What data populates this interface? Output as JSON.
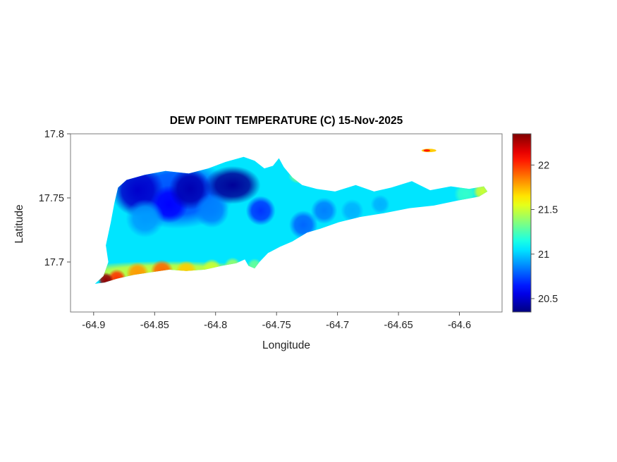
{
  "chart_data": {
    "type": "heatmap",
    "title": "DEW POINT TEMPERATURE (C) 15-Nov-2025",
    "xlabel": "Longitude",
    "ylabel": "Latitude",
    "xlim": [
      -64.919,
      -64.565
    ],
    "ylim": [
      17.661,
      17.8
    ],
    "grid": false,
    "xticks": [
      -64.9,
      -64.85,
      -64.8,
      -64.75,
      -64.7,
      -64.65,
      -64.6
    ],
    "xtick_labels": [
      "-64.9",
      "-64.85",
      "-64.8",
      "-64.75",
      "-64.7",
      "-64.65",
      "-64.6"
    ],
    "yticks": [
      17.7,
      17.75,
      17.8
    ],
    "ytick_labels": [
      "17.7",
      "17.75",
      "17.8"
    ],
    "colorbar": {
      "colormap": "jet",
      "min": 20.35,
      "max": 22.35,
      "ticks": [
        20.5,
        21,
        21.5,
        22
      ],
      "tick_labels": [
        "20.5",
        "21",
        "21.5",
        "22"
      ]
    },
    "base_value": 21.05,
    "island_outline": [
      [
        -64.899,
        17.683
      ],
      [
        -64.892,
        17.689
      ],
      [
        -64.888,
        17.7
      ],
      [
        -64.89,
        17.713
      ],
      [
        -64.886,
        17.731
      ],
      [
        -64.883,
        17.746
      ],
      [
        -64.88,
        17.758
      ],
      [
        -64.873,
        17.764
      ],
      [
        -64.858,
        17.768
      ],
      [
        -64.841,
        17.771
      ],
      [
        -64.822,
        17.769
      ],
      [
        -64.806,
        17.773
      ],
      [
        -64.792,
        17.778
      ],
      [
        -64.777,
        17.782
      ],
      [
        -64.768,
        17.779
      ],
      [
        -64.76,
        17.773
      ],
      [
        -64.753,
        17.775
      ],
      [
        -64.748,
        17.781
      ],
      [
        -64.744,
        17.774
      ],
      [
        -64.737,
        17.766
      ],
      [
        -64.729,
        17.76
      ],
      [
        -64.717,
        17.757
      ],
      [
        -64.702,
        17.755
      ],
      [
        -64.685,
        17.76
      ],
      [
        -64.67,
        17.755
      ],
      [
        -64.656,
        17.758
      ],
      [
        -64.639,
        17.763
      ],
      [
        -64.624,
        17.756
      ],
      [
        -64.607,
        17.759
      ],
      [
        -64.592,
        17.757
      ],
      [
        -64.58,
        17.759
      ],
      [
        -64.577,
        17.755
      ],
      [
        -64.584,
        17.751
      ],
      [
        -64.601,
        17.748
      ],
      [
        -64.621,
        17.744
      ],
      [
        -64.641,
        17.742
      ],
      [
        -64.662,
        17.738
      ],
      [
        -64.682,
        17.735
      ],
      [
        -64.699,
        17.731
      ],
      [
        -64.714,
        17.726
      ],
      [
        -64.725,
        17.723
      ],
      [
        -64.737,
        17.716
      ],
      [
        -64.747,
        17.712
      ],
      [
        -64.757,
        17.707
      ],
      [
        -64.764,
        17.7
      ],
      [
        -64.768,
        17.695
      ],
      [
        -64.773,
        17.697
      ],
      [
        -64.776,
        17.702
      ],
      [
        -64.783,
        17.699
      ],
      [
        -64.795,
        17.697
      ],
      [
        -64.809,
        17.694
      ],
      [
        -64.824,
        17.693
      ],
      [
        -64.838,
        17.694
      ],
      [
        -64.853,
        17.692
      ],
      [
        -64.867,
        17.69
      ],
      [
        -64.881,
        17.687
      ],
      [
        -64.891,
        17.684
      ]
    ],
    "blobs": [
      [
        -64.832,
        17.753,
        20.75,
        0.035,
        0.02
      ],
      [
        -64.864,
        17.756,
        20.5,
        0.016
      ],
      [
        -64.838,
        17.745,
        20.6,
        0.0115
      ],
      [
        -64.821,
        17.757,
        20.45,
        0.0127
      ],
      [
        -64.786,
        17.76,
        20.4,
        0.017,
        0.011
      ],
      [
        -64.763,
        17.74,
        20.7,
        0.009
      ],
      [
        -64.728,
        17.729,
        20.8,
        0.0087
      ],
      [
        -64.711,
        17.74,
        20.85,
        0.008
      ],
      [
        -64.803,
        17.74,
        20.85,
        0.0104
      ],
      [
        -64.858,
        17.734,
        20.9,
        0.0116
      ],
      [
        -64.688,
        17.74,
        20.95,
        0.007
      ],
      [
        -64.665,
        17.745,
        20.95,
        0.0058
      ],
      [
        -64.731,
        17.767,
        21.35,
        0.0069,
        0.0044
      ],
      [
        -64.595,
        17.753,
        21.2,
        0.0069
      ],
      [
        -64.581,
        17.755,
        21.5,
        0.0058
      ],
      [
        -64.838,
        17.692,
        21.5,
        0.064,
        0.0066
      ],
      [
        -64.786,
        17.697,
        21.4,
        0.0052
      ],
      [
        -64.803,
        17.695,
        21.5,
        0.0058
      ],
      [
        -64.824,
        17.693,
        21.7,
        0.0064
      ],
      [
        -64.844,
        17.693,
        21.9,
        0.0069
      ],
      [
        -64.864,
        17.691,
        21.8,
        0.0069
      ],
      [
        -64.881,
        17.687,
        22.0,
        0.0058
      ],
      [
        -64.89,
        17.686,
        22.3,
        0.0046
      ],
      [
        -64.768,
        17.697,
        21.3,
        0.0046
      ]
    ],
    "islet": {
      "lon": -64.625,
      "lat": 17.787,
      "value": 21.7,
      "core_value": 22.05,
      "rx": 0.006,
      "ry": 0.0013
    }
  }
}
